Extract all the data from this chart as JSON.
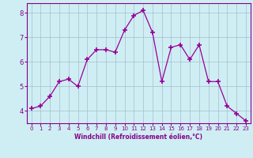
{
  "x": [
    0,
    1,
    2,
    3,
    4,
    5,
    6,
    7,
    8,
    9,
    10,
    11,
    12,
    13,
    14,
    15,
    16,
    17,
    18,
    19,
    20,
    21,
    22,
    23
  ],
  "y": [
    4.1,
    4.2,
    4.6,
    5.2,
    5.3,
    5.0,
    6.1,
    6.5,
    6.5,
    6.4,
    7.3,
    7.9,
    8.1,
    7.2,
    5.2,
    6.6,
    6.7,
    6.1,
    6.7,
    5.2,
    5.2,
    4.2,
    3.9,
    3.6
  ],
  "line_color": "#990099",
  "marker": "+",
  "marker_size": 5,
  "marker_lw": 1.2,
  "bg_color": "#ceeef4",
  "grid_color": "#aabbcc",
  "xlabel": "Windchill (Refroidissement éolien,°C)",
  "xlabel_color": "#880088",
  "tick_color": "#880088",
  "ylim": [
    3.5,
    8.4
  ],
  "xlim": [
    -0.5,
    23.5
  ],
  "yticks": [
    4,
    5,
    6,
    7,
    8
  ],
  "xticks": [
    0,
    1,
    2,
    3,
    4,
    5,
    6,
    7,
    8,
    9,
    10,
    11,
    12,
    13,
    14,
    15,
    16,
    17,
    18,
    19,
    20,
    21,
    22,
    23
  ]
}
